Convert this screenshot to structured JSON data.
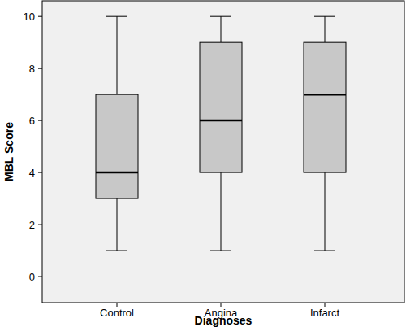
{
  "chart_data": {
    "type": "box",
    "x_label": "Diagnoses",
    "y_label": "MBL Score",
    "categories": [
      "Control",
      "Angina",
      "Infarct"
    ],
    "min": [
      1,
      1,
      1
    ],
    "q1": [
      3,
      4,
      4
    ],
    "median": [
      4,
      6,
      7
    ],
    "q3": [
      7,
      9,
      9
    ],
    "max": [
      10,
      10,
      10
    ],
    "color": "#c8c8c8",
    "ylim": [
      -1,
      10.6
    ],
    "yticks": [
      0,
      2,
      4,
      6,
      8,
      10
    ],
    "grid": false
  }
}
